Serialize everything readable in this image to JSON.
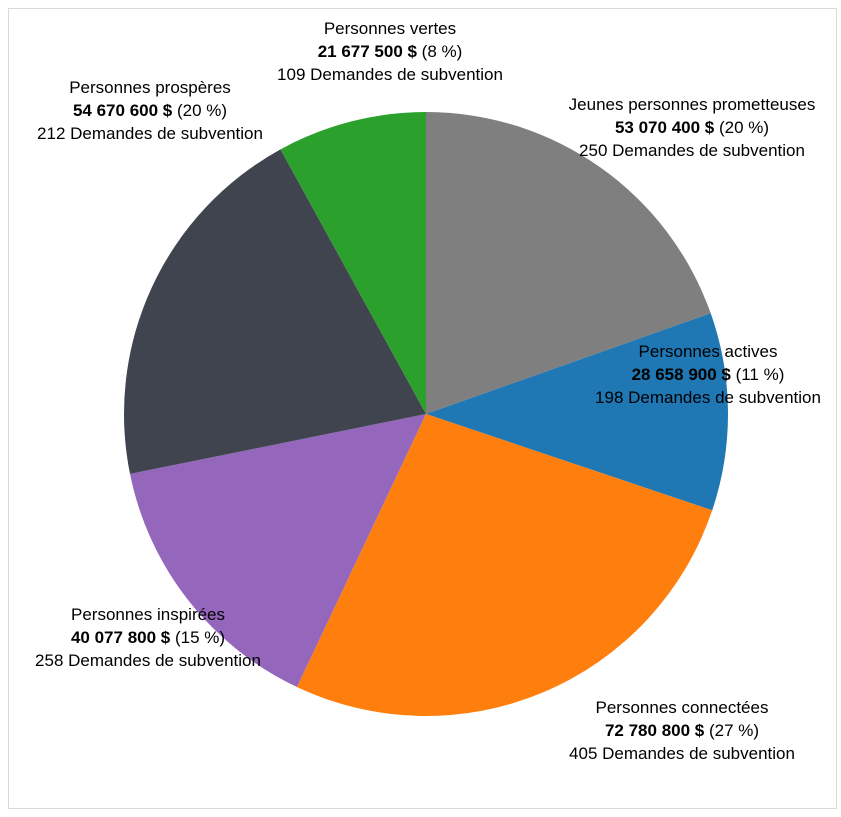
{
  "chart_data": {
    "type": "pie",
    "slices": [
      {
        "name": "Jeunes personnes prometteuses",
        "amount": "53 070 400 $",
        "percent": "(20 %)",
        "requests": "250 Demandes de subvention",
        "value": 53070400,
        "color": "#7f7f7f"
      },
      {
        "name": "Personnes actives",
        "amount": "28 658 900 $",
        "percent": "(11 %)",
        "requests": "198 Demandes de subvention",
        "value": 28658900,
        "color": "#1f77b4"
      },
      {
        "name": "Personnes connectées",
        "amount": "72 780 800 $",
        "percent": "(27 %)",
        "requests": "405 Demandes de subvention",
        "value": 72780800,
        "color": "#ff7f0e"
      },
      {
        "name": "Personnes inspirées",
        "amount": "40 077 800 $",
        "percent": "(15 %)",
        "requests": "258 Demandes de subvention",
        "value": 40077800,
        "color": "#9467bd"
      },
      {
        "name": "Personnes prospères",
        "amount": "54 670 600 $",
        "percent": "(20 %)",
        "requests": "212 Demandes de subvention",
        "value": 54670600,
        "color": "#40444f"
      },
      {
        "name": "Personnes vertes",
        "amount": "21 677 500 $",
        "percent": "(8 %)",
        "requests": "109 Demandes de subvention",
        "value": 21677500,
        "color": "#2ca02c"
      }
    ]
  }
}
